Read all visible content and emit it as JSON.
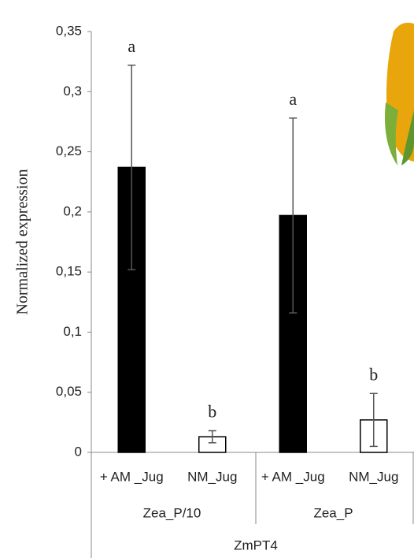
{
  "chart_data": {
    "type": "bar",
    "ylabel": "Normalized expression",
    "categories": [
      "+ AM _Jug",
      "NM_Jug",
      "+ AM _Jug",
      "NM_Jug"
    ],
    "groups": [
      "Zea_P/10",
      "Zea_P"
    ],
    "supergroup": "ZmPT4",
    "values": [
      0.237,
      0.013,
      0.197,
      0.027
    ],
    "errors": [
      0.085,
      0.005,
      0.081,
      0.022
    ],
    "letters": [
      "a",
      "b",
      "a",
      "b"
    ],
    "colors": [
      "#000000",
      "#ffffff",
      "#000000",
      "#ffffff"
    ],
    "ylim": [
      0,
      0.35
    ],
    "yticks": [
      0,
      {
        "value": 0.05,
        "label": "0,05"
      },
      {
        "value": 0.1,
        "label": "0,1"
      },
      {
        "value": 0.15,
        "label": "0,15"
      },
      {
        "value": 0.2,
        "label": "0,2"
      },
      {
        "value": 0.25,
        "label": "0,25"
      },
      {
        "value": 0.3,
        "label": "0,3"
      },
      {
        "value": 0.35,
        "label": "0,35"
      }
    ]
  }
}
